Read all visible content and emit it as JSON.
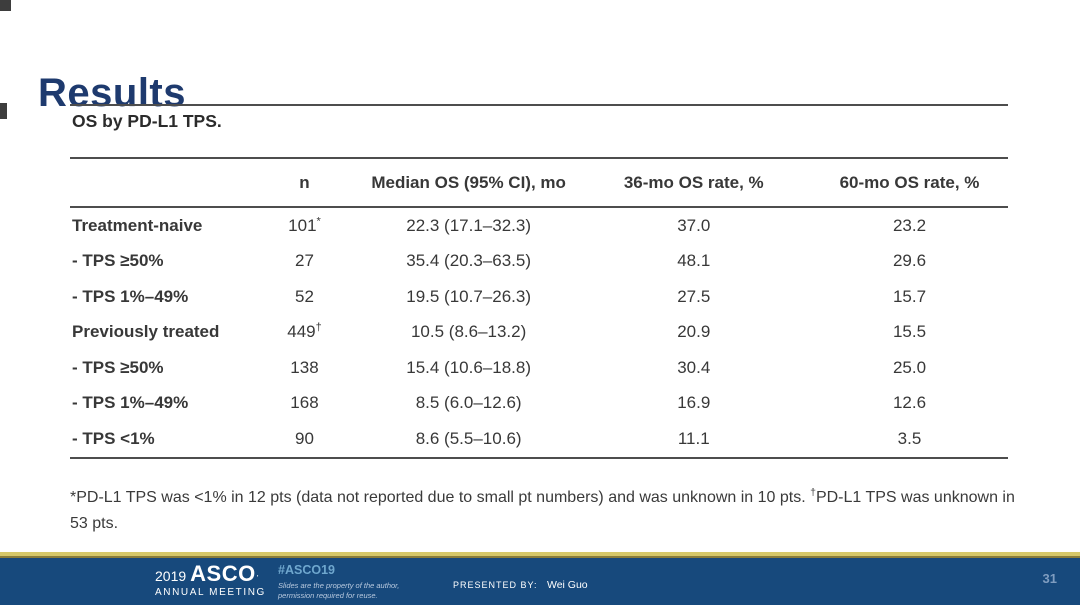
{
  "slide": {
    "title": "Results"
  },
  "table": {
    "caption": "OS by PD-L1 TPS.",
    "columns": [
      "",
      "n",
      "Median OS (95% CI), mo",
      "36-mo OS rate, %",
      "60-mo OS rate, %"
    ],
    "rows": [
      {
        "label": "Treatment-naive",
        "n": "101",
        "sup": "*",
        "median": "22.3 (17.1–32.3)",
        "os36": "37.0",
        "os60": "23.2"
      },
      {
        "label": "- TPS ≥50%",
        "n": "27",
        "sup": "",
        "median": "35.4 (20.3–63.5)",
        "os36": "48.1",
        "os60": "29.6"
      },
      {
        "label": "- TPS 1%–49%",
        "n": "52",
        "sup": "",
        "median": "19.5 (10.7–26.3)",
        "os36": "27.5",
        "os60": "15.7"
      },
      {
        "label": "Previously treated",
        "n": "449",
        "sup": "†",
        "median": "10.5 (8.6–13.2)",
        "os36": "20.9",
        "os60": "15.5"
      },
      {
        "label": "- TPS ≥50%",
        "n": "138",
        "sup": "",
        "median": "15.4 (10.6–18.8)",
        "os36": "30.4",
        "os60": "25.0"
      },
      {
        "label": "- TPS 1%–49%",
        "n": "168",
        "sup": "",
        "median": "8.5 (6.0–12.6)",
        "os36": "16.9",
        "os60": "12.6"
      },
      {
        "label": "- TPS <1%",
        "n": "90",
        "sup": "",
        "median": "8.6 (5.5–10.6)",
        "os36": "11.1",
        "os60": "3.5"
      }
    ],
    "footnote": {
      "part1": "*PD-L1 TPS was <1% in 12 pts (data not reported due to small pt numbers) and was unknown in 10 pts. ",
      "dagger": "†",
      "part2": "PD-L1 TPS was unknown in 53 pts."
    }
  },
  "footer": {
    "logo_year": "2019",
    "logo_org": "ASCO",
    "logo_mark": "’",
    "logo_sub": "ANNUAL MEETING",
    "hashtag": "#ASCO19",
    "disclaimer_line1": "Slides are the property of the author,",
    "disclaimer_line2": "permission required for reuse.",
    "presented_by_label": "PRESENTED BY:",
    "presenter": "Wei Guo",
    "page_number": "31"
  },
  "colors": {
    "title_navy": "#1e3a6e",
    "footer_blue": "#17497c",
    "gold_accent": "#d6c869",
    "hashtag_blue": "#6fa7ce",
    "page_number_blue": "#7f9dc0",
    "table_text": "#383838",
    "rule_gray": "#4d4d4d"
  }
}
